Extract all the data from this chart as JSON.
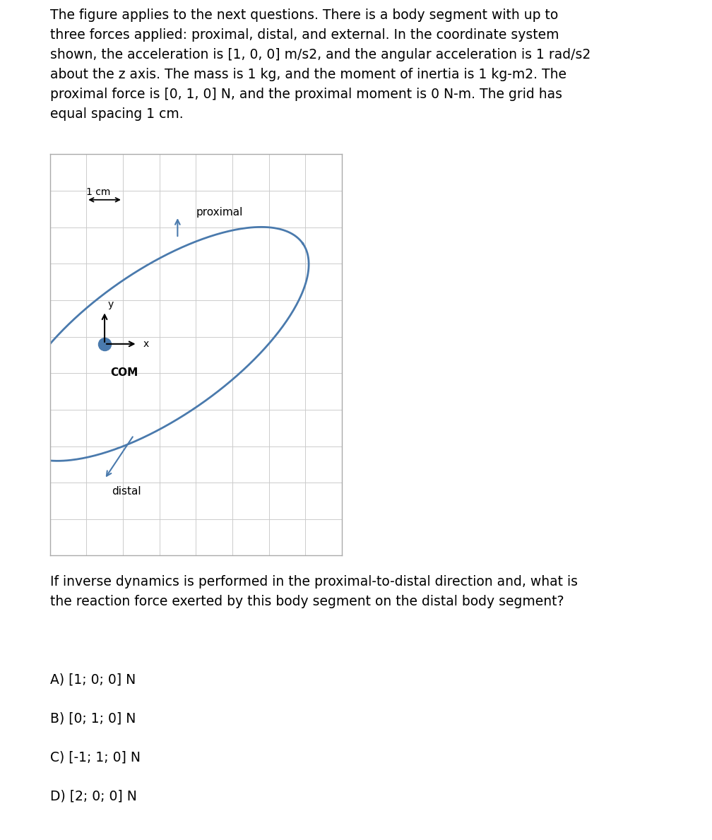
{
  "title_text": "The figure applies to the next questions. There is a body segment with up to\nthree forces applied: proximal, distal, and external. In the coordinate system\nshown, the acceleration is [1, 0, 0] m/s2, and the angular acceleration is 1 rad/s2\nabout the z axis. The mass is 1 kg, and the moment of inertia is 1 kg-m2. The\nproximal force is [0, 1, 0] N, and the proximal moment is 0 N-m. The grid has\nequal spacing 1 cm.",
  "question_text": "If inverse dynamics is performed in the proximal-to-distal direction and, what is\nthe reaction force exerted by this body segment on the distal body segment?",
  "choices": [
    "A) [1; 0; 0] N",
    "B) [0; 1; 0] N",
    "C) [-1; 1; 0] N",
    "D) [2; 0; 0] N"
  ],
  "body_color": "#4a7aad",
  "grid_color": "#cccccc",
  "background_color": "#ffffff",
  "fig_width": 10.08,
  "fig_height": 11.89,
  "grid_n_cols": 8,
  "grid_n_rows": 11
}
